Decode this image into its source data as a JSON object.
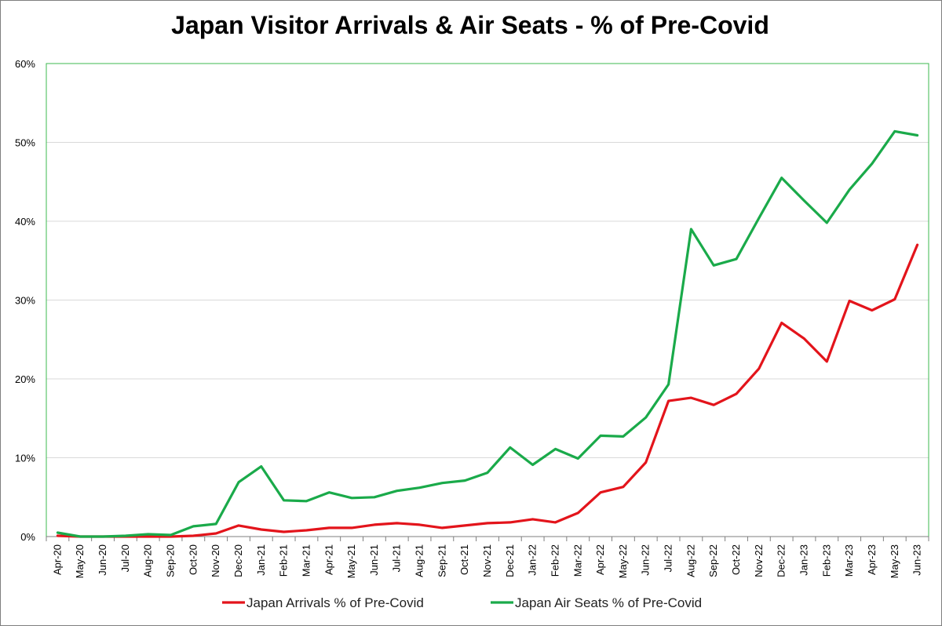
{
  "chart_data": {
    "type": "line",
    "title": "Japan Visitor Arrivals & Air Seats - % of Pre-Covid",
    "xlabel": "",
    "ylabel": "",
    "ylim": [
      0,
      60
    ],
    "y_ticks": [
      "0%",
      "10%",
      "20%",
      "30%",
      "40%",
      "50%",
      "60%"
    ],
    "y_tick_values": [
      0,
      10,
      20,
      30,
      40,
      50,
      60
    ],
    "grid": true,
    "legend_position": "bottom",
    "categories": [
      "Apr-20",
      "May-20",
      "Jun-20",
      "Jul-20",
      "Aug-20",
      "Sep-20",
      "Oct-20",
      "Nov-20",
      "Dec-20",
      "Jan-21",
      "Feb-21",
      "Mar-21",
      "Apr-21",
      "May-21",
      "Jun-21",
      "Jul-21",
      "Aug-21",
      "Sep-21",
      "Oct-21",
      "Nov-21",
      "Dec-21",
      "Jan-22",
      "Feb-22",
      "Mar-22",
      "Apr-22",
      "May-22",
      "Jun-22",
      "Jul-22",
      "Aug-22",
      "Sep-22",
      "Oct-22",
      "Nov-22",
      "Dec-22",
      "Jan-23",
      "Feb-23",
      "Mar-23",
      "Apr-23",
      "May-23",
      "Jun-23"
    ],
    "series": [
      {
        "name": "Japan Arrivals % of Pre-Covid",
        "color": "#e3141b",
        "values": [
          0.1,
          0.0,
          0.0,
          0.0,
          0.0,
          0.0,
          0.1,
          0.4,
          1.4,
          0.9,
          0.6,
          0.8,
          1.1,
          1.1,
          1.5,
          1.7,
          1.5,
          1.1,
          1.4,
          1.7,
          1.8,
          2.2,
          1.8,
          3.0,
          5.6,
          6.3,
          9.4,
          17.2,
          17.6,
          16.7,
          18.1,
          21.3,
          27.1,
          25.1,
          22.2,
          29.9,
          28.7,
          30.1,
          37.0
        ]
      },
      {
        "name": "Japan Air Seats % of Pre-Covid",
        "color": "#1aaa4a",
        "values": [
          0.5,
          0.0,
          0.0,
          0.1,
          0.3,
          0.2,
          1.3,
          1.6,
          6.9,
          8.9,
          4.6,
          4.5,
          5.6,
          4.9,
          5.0,
          5.8,
          6.2,
          6.8,
          7.1,
          8.1,
          11.3,
          9.1,
          11.1,
          9.9,
          12.8,
          12.7,
          15.1,
          19.3,
          39.0,
          34.4,
          35.2,
          40.4,
          45.5,
          42.6,
          39.8,
          44.0,
          47.3,
          51.4,
          50.9
        ]
      }
    ]
  },
  "colors": {
    "plot_border": "#3cb84f",
    "grid": "#d9d9d9",
    "axis": "#7f7f7f"
  }
}
